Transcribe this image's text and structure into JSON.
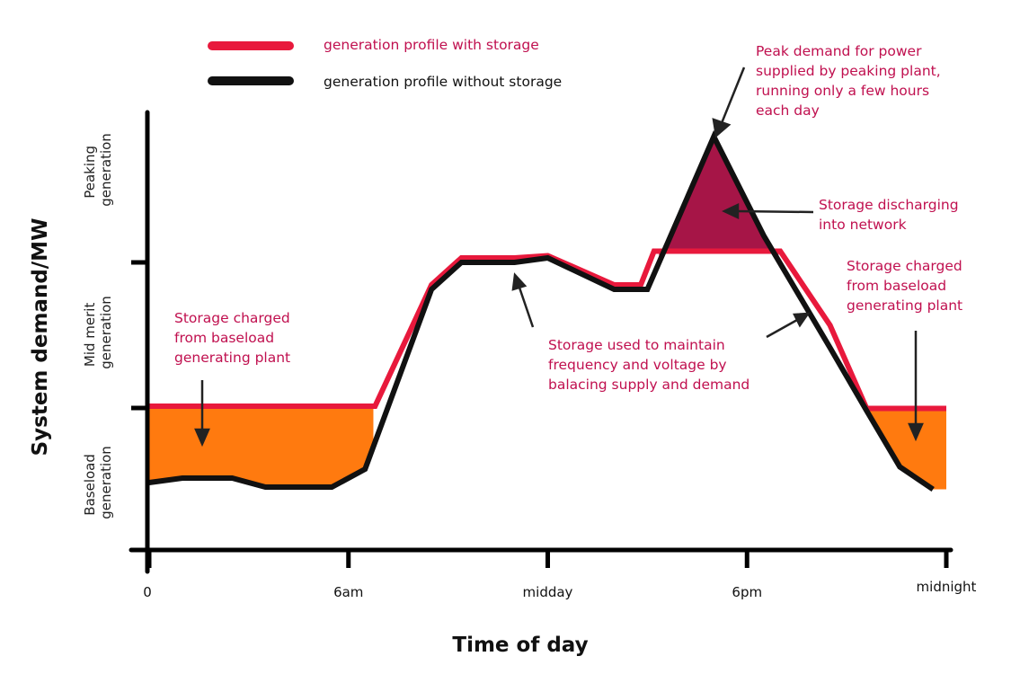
{
  "chart_data": {
    "type": "line",
    "title": "",
    "xlabel": "Time of day",
    "ylabel": "System demand/MW",
    "x_ticks": [
      "0",
      "6am",
      "midday",
      "6pm",
      "midnight"
    ],
    "x_tick_hours": [
      0,
      6,
      12,
      18,
      24
    ],
    "xlim": [
      0,
      24
    ],
    "ylim": [
      0,
      100
    ],
    "y_bands": [
      {
        "name": "Baseload generation",
        "lines": [
          "Baseload",
          "generation"
        ],
        "range": [
          0,
          33
        ]
      },
      {
        "name": "Mid merit generation",
        "lines": [
          "Mid merit",
          "generation"
        ],
        "range": [
          33,
          66
        ]
      },
      {
        "name": "Peaking generation",
        "lines": [
          "Peaking",
          "generation"
        ],
        "range": [
          66,
          100
        ]
      }
    ],
    "series": [
      {
        "name": "generation profile with storage",
        "color": "#e8193c",
        "points": [
          [
            0,
            32
          ],
          [
            6.8,
            32
          ],
          [
            8.5,
            59
          ],
          [
            9.4,
            65
          ],
          [
            11,
            65
          ],
          [
            12,
            65.5
          ],
          [
            14,
            59
          ],
          [
            14.8,
            59
          ],
          [
            15.2,
            66.5
          ],
          [
            19,
            66.5
          ],
          [
            20.5,
            50
          ],
          [
            21.6,
            31.5
          ],
          [
            24,
            31.5
          ]
        ]
      },
      {
        "name": "generation profile without storage",
        "color": "#111111",
        "points": [
          [
            0,
            15
          ],
          [
            1,
            16
          ],
          [
            2.5,
            16
          ],
          [
            3.5,
            14
          ],
          [
            5.5,
            14
          ],
          [
            6.5,
            18
          ],
          [
            8.5,
            58
          ],
          [
            9.4,
            64
          ],
          [
            11,
            64
          ],
          [
            12,
            65
          ],
          [
            14,
            58
          ],
          [
            15,
            58
          ],
          [
            17,
            92
          ],
          [
            18.5,
            70
          ],
          [
            20.5,
            45
          ],
          [
            21.6,
            31
          ],
          [
            22.6,
            18.5
          ],
          [
            23.6,
            13.5
          ]
        ]
      }
    ],
    "regions": [
      {
        "name": "Storage charged from baseload generating plant (night)",
        "color": "#ff7a0f"
      },
      {
        "name": "Storage discharging into network",
        "color": "#a61547"
      },
      {
        "name": "Storage charged from baseload generating plant (late evening)",
        "color": "#ff7a0f"
      }
    ],
    "annotations": {
      "peak": [
        "Peak demand for power",
        "supplied by peaking plant,",
        "running only a few hours",
        "each day"
      ],
      "discharge": [
        "Storage discharging",
        "into network"
      ],
      "charged_right": [
        "Storage charged",
        "from baseload",
        "generating plant"
      ],
      "charged_left": [
        "Storage charged",
        "from baseload",
        "generating plant"
      ],
      "frequency": [
        "Storage used to maintain",
        "frequency and voltage by",
        "balacing supply and demand"
      ]
    },
    "legend_position": "top-left"
  }
}
